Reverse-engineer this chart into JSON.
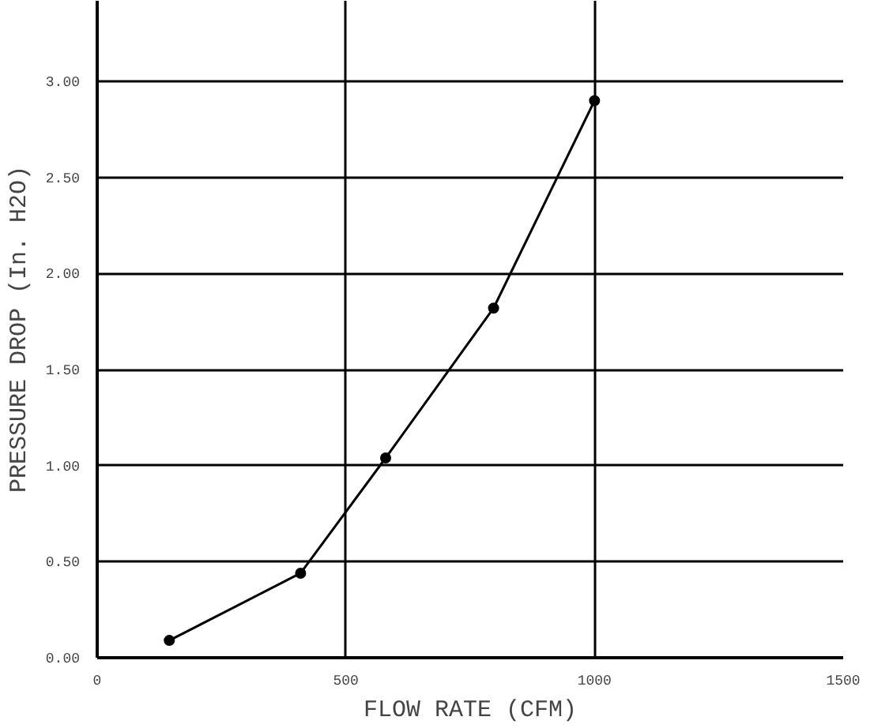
{
  "chart_data": {
    "type": "line",
    "xlabel": "FLOW RATE (CFM)",
    "ylabel": "PRESSURE DROP (In. H2O)",
    "x": [
      145,
      409,
      580,
      797,
      1000
    ],
    "values": [
      0.09,
      0.44,
      1.04,
      1.82,
      2.9
    ],
    "color": "#000000",
    "marker": "circle",
    "line_style": "solid",
    "grid": true,
    "xlim": [
      0,
      1500
    ],
    "xticks": [
      0,
      500,
      1000,
      1500
    ],
    "ylim": [
      0,
      3.42
    ],
    "yticks": [
      {
        "value": 0,
        "label": "0.00"
      },
      {
        "value": 0.5,
        "label": "0.50"
      },
      {
        "value": 1,
        "label": "1.00"
      },
      {
        "value": 1.5,
        "label": "1.50"
      },
      {
        "value": 2,
        "label": "2.00"
      },
      {
        "value": 2.5,
        "label": "2.50"
      },
      {
        "value": 3,
        "label": "3.00"
      }
    ]
  }
}
